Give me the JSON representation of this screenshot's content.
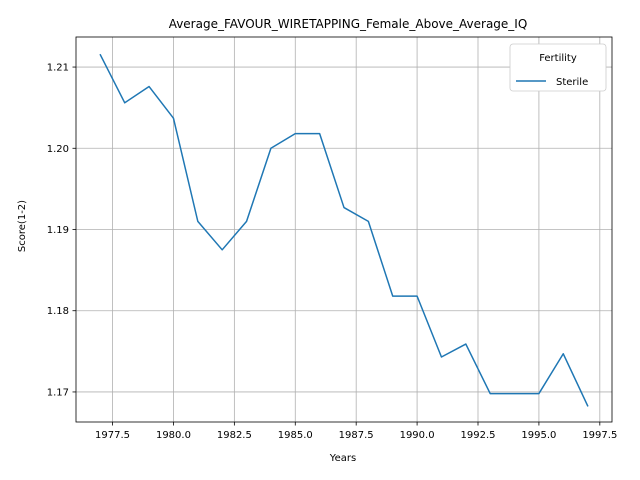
{
  "chart_data": {
    "type": "line",
    "title": "Average_FAVOUR_WIRETAPPING_Female_Above_Average_IQ",
    "xlabel": "Years",
    "ylabel": "Score(1-2)",
    "xlim": [
      1976.0,
      1998.0
    ],
    "ylim": [
      1.1663,
      1.2137
    ],
    "xticks": [
      1977.5,
      1980.0,
      1982.5,
      1985.0,
      1987.5,
      1990.0,
      1992.5,
      1995.0,
      1997.5
    ],
    "xtick_labels": [
      "1977.5",
      "1980.0",
      "1982.5",
      "1985.0",
      "1987.5",
      "1990.0",
      "1992.5",
      "1995.0",
      "1997.5"
    ],
    "yticks": [
      1.17,
      1.18,
      1.19,
      1.2,
      1.21
    ],
    "ytick_labels": [
      "1.17",
      "1.18",
      "1.19",
      "1.20",
      "1.21"
    ],
    "grid": true,
    "legend": {
      "title": "Fertility",
      "placement": "top-right"
    },
    "x": [
      1977,
      1978,
      1979,
      1980,
      1981,
      1982,
      1983,
      1984,
      1985,
      1986,
      1987,
      1988,
      1989,
      1990,
      1991,
      1992,
      1993,
      1994,
      1995,
      1996,
      1997
    ],
    "series": [
      {
        "name": "Sterile",
        "color": "#1f77b4",
        "values": [
          1.2115,
          1.2056,
          1.2076,
          1.2037,
          1.191,
          1.1875,
          1.191,
          1.2,
          1.2018,
          1.2018,
          1.1927,
          1.191,
          1.1818,
          1.1818,
          1.1743,
          1.1759,
          1.1698,
          1.1698,
          1.1698,
          1.1747,
          1.1683
        ]
      }
    ]
  }
}
